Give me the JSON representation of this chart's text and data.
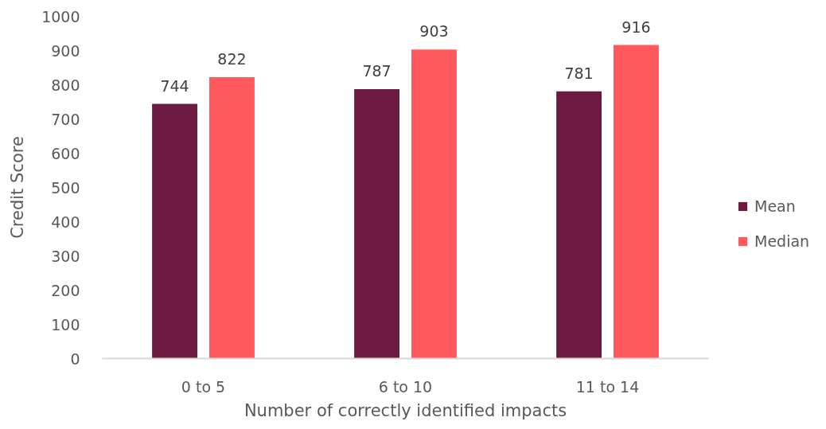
{
  "chart_data": {
    "type": "bar",
    "xlabel": "Number of correctly identified impacts",
    "ylabel": "Credit Score",
    "categories": [
      "0 to 5",
      "6 to 10",
      "11 to 14"
    ],
    "series": [
      {
        "name": "Mean",
        "color": "#6d1a42",
        "values": [
          744,
          787,
          781
        ]
      },
      {
        "name": "Median",
        "color": "#ff585d",
        "values": [
          822,
          903,
          916
        ]
      }
    ],
    "ylim": [
      0,
      1000
    ],
    "yticks": [
      0,
      100,
      200,
      300,
      400,
      500,
      600,
      700,
      800,
      900,
      1000
    ],
    "data_labels": true,
    "legend": "right",
    "grid": false
  }
}
